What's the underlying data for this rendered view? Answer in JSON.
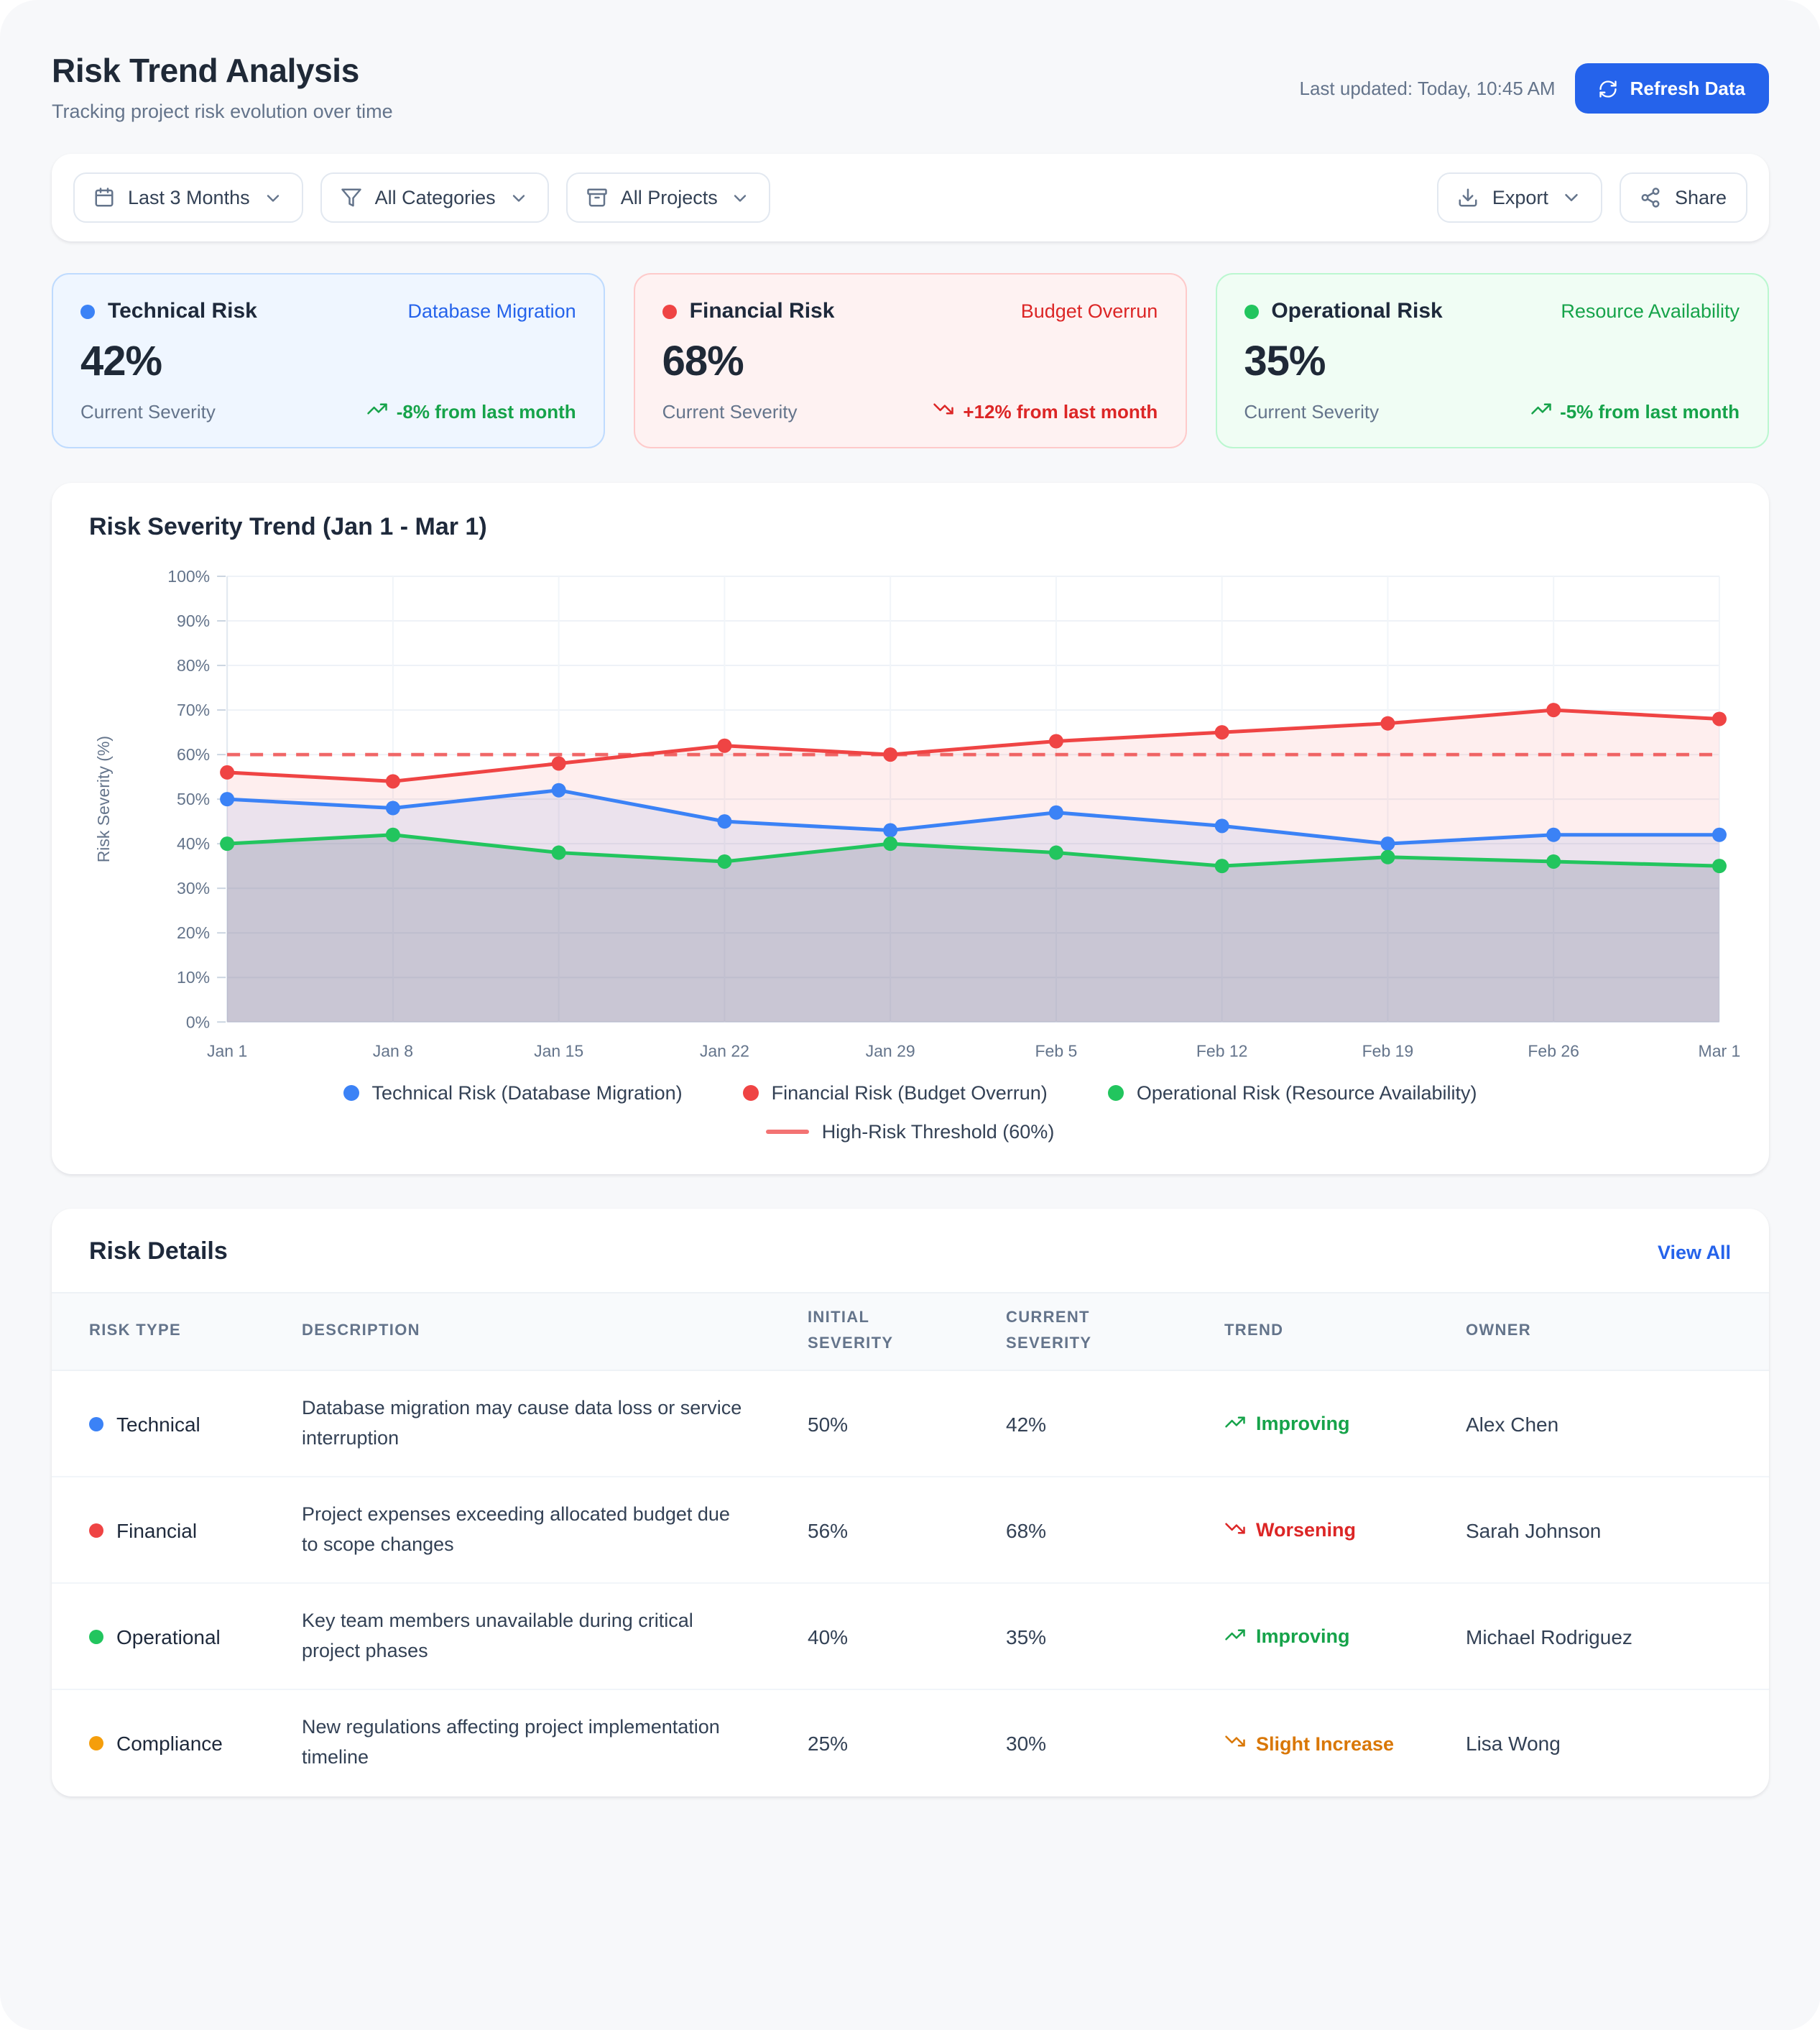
{
  "header": {
    "title": "Risk Trend Analysis",
    "subtitle": "Tracking project risk evolution over time",
    "last_updated": "Last updated: Today, 10:45 AM",
    "refresh_button": "Refresh Data"
  },
  "toolbar": {
    "filters": [
      {
        "id": "date-range",
        "icon": "calendar-icon",
        "label": "Last 3 Months"
      },
      {
        "id": "categories",
        "icon": "filter-icon",
        "label": "All Categories"
      },
      {
        "id": "projects",
        "icon": "archive-icon",
        "label": "All Projects"
      }
    ],
    "export_label": "Export",
    "share_label": "Share"
  },
  "stat_cards": [
    {
      "title": "Technical Risk",
      "tag": "Database Migration",
      "value": "42%",
      "caption": "Current Severity",
      "trend_text": "-8% from last month",
      "trend_icon": "trending-up-icon",
      "colors": {
        "dot": "#3b82f6",
        "tag": "#2563eb",
        "bg": "#eff6ff",
        "border": "#bfdbfe",
        "trend": "#16a34a"
      }
    },
    {
      "title": "Financial Risk",
      "tag": "Budget Overrun",
      "value": "68%",
      "caption": "Current Severity",
      "trend_text": "+12% from last month",
      "trend_icon": "trending-down-icon",
      "colors": {
        "dot": "#ef4444",
        "tag": "#dc2626",
        "bg": "#fef2f2",
        "border": "#fecaca",
        "trend": "#dc2626"
      }
    },
    {
      "title": "Operational Risk",
      "tag": "Resource Availability",
      "value": "35%",
      "caption": "Current Severity",
      "trend_text": "-5% from last month",
      "trend_icon": "trending-up-icon",
      "colors": {
        "dot": "#22c55e",
        "tag": "#16a34a",
        "bg": "#f0fdf4",
        "border": "#bbf7d0",
        "trend": "#16a34a"
      }
    }
  ],
  "chart_card": {
    "title": "Risk Severity Trend (Jan 1 - Mar 1)"
  },
  "chart_data": {
    "type": "line",
    "title": "Risk Severity Trend (Jan 1 - Mar 1)",
    "ylabel": "Risk Severity (%)",
    "ylim": [
      0,
      100
    ],
    "y_tick_step": 10,
    "y_tick_suffix": "%",
    "grid": true,
    "legend_position": "bottom",
    "categories": [
      "Jan 1",
      "Jan 8",
      "Jan 15",
      "Jan 22",
      "Jan 29",
      "Feb 5",
      "Feb 12",
      "Feb 19",
      "Feb 26",
      "Mar 1"
    ],
    "series": [
      {
        "name": "Technical Risk (Database Migration)",
        "color": "#3b82f6",
        "values": [
          50,
          48,
          52,
          45,
          43,
          47,
          44,
          40,
          42,
          42
        ]
      },
      {
        "name": "Financial Risk (Budget Overrun)",
        "color": "#ef4444",
        "values": [
          56,
          54,
          58,
          62,
          60,
          63,
          65,
          67,
          70,
          68
        ]
      },
      {
        "name": "Operational Risk (Resource Availability)",
        "color": "#22c55e",
        "values": [
          40,
          42,
          38,
          36,
          40,
          38,
          35,
          37,
          36,
          35
        ]
      }
    ],
    "threshold": {
      "label": "High-Risk Threshold (60%)",
      "value": 60,
      "color": "#ef4444",
      "style": "dashed"
    }
  },
  "table": {
    "title": "Risk Details",
    "view_all": "View All",
    "columns": [
      "Risk Type",
      "Description",
      "Initial Severity",
      "Current Severity",
      "Trend",
      "Owner"
    ],
    "rows": [
      {
        "type": "Technical",
        "dot_color": "#3b82f6",
        "description": "Database migration may cause data loss or service interruption",
        "initial": "50%",
        "current": "42%",
        "trend": "Improving",
        "trend_icon": "trending-up-icon",
        "trend_color": "#16a34a",
        "owner": "Alex Chen"
      },
      {
        "type": "Financial",
        "dot_color": "#ef4444",
        "description": "Project expenses exceeding allocated budget due to scope changes",
        "initial": "56%",
        "current": "68%",
        "trend": "Worsening",
        "trend_icon": "trending-down-icon",
        "trend_color": "#dc2626",
        "owner": "Sarah Johnson"
      },
      {
        "type": "Operational",
        "dot_color": "#22c55e",
        "description": "Key team members unavailable during critical project phases",
        "initial": "40%",
        "current": "35%",
        "trend": "Improving",
        "trend_icon": "trending-up-icon",
        "trend_color": "#16a34a",
        "owner": "Michael Rodriguez"
      },
      {
        "type": "Compliance",
        "dot_color": "#f59e0b",
        "description": "New regulations affecting project implementation timeline",
        "initial": "25%",
        "current": "30%",
        "trend": "Slight Increase",
        "trend_icon": "trending-down-icon",
        "trend_color": "#d97706",
        "owner": "Lisa Wong"
      }
    ]
  }
}
